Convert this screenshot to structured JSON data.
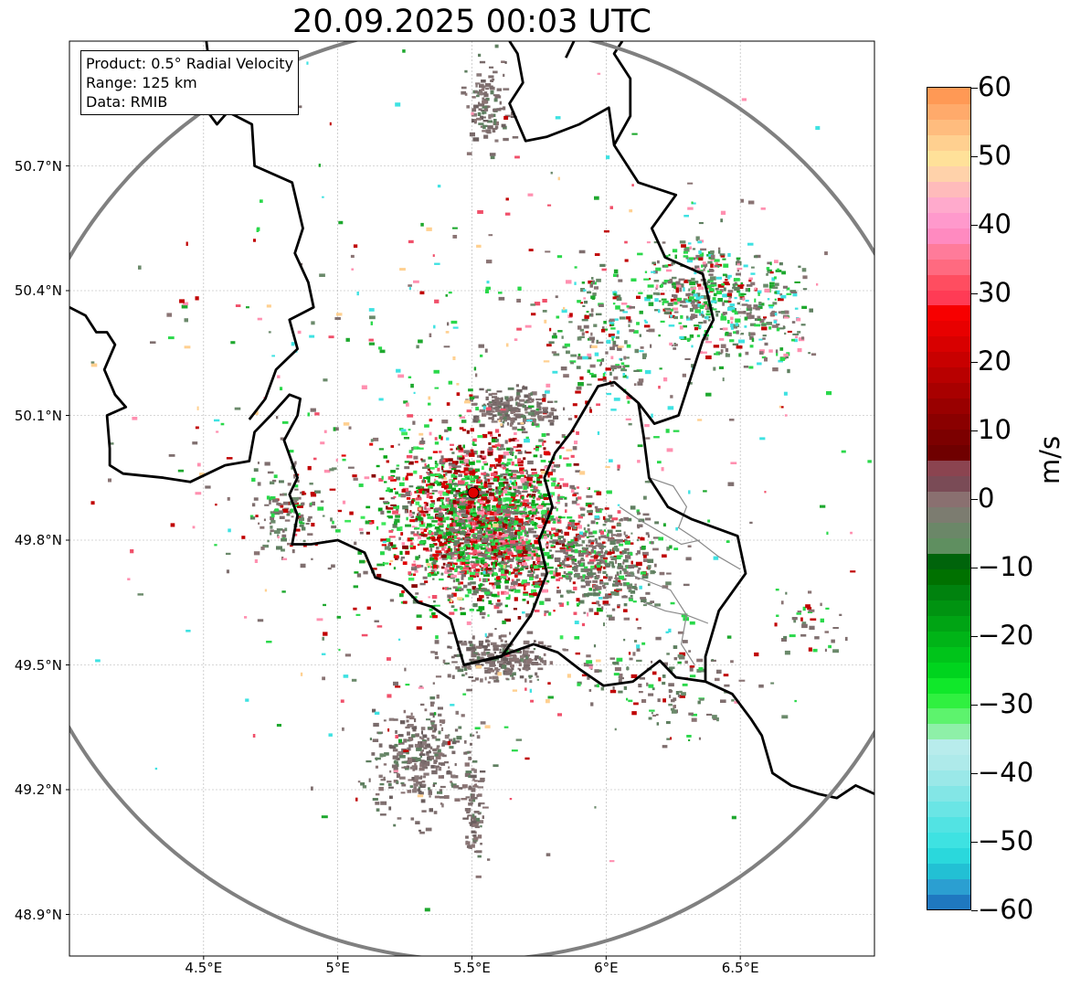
{
  "title": "20.09.2025 00:03 UTC",
  "info_box": {
    "product": "Product: 0.5° Radial Velocity",
    "range": "Range: 125 km",
    "data": "Data: RMIB"
  },
  "map": {
    "lon_range": [
      4.0,
      7.0
    ],
    "lat_range": [
      48.8,
      51.0
    ],
    "lon_ticks": [
      "4.5°E",
      "5°E",
      "5.5°E",
      "6°E",
      "6.5°E"
    ],
    "lat_ticks": [
      "50.7°N",
      "50.4°N",
      "50.1°N",
      "49.8°N",
      "49.5°N",
      "49.2°N",
      "48.9°N"
    ],
    "radar_site": {
      "lon": 5.505,
      "lat": 49.914
    },
    "range_km": 125,
    "grid": true,
    "borders": [
      [
        [
          4.51,
          51.0
        ],
        [
          4.52,
          50.95
        ],
        [
          4.48,
          50.86
        ],
        [
          4.55,
          50.8
        ],
        [
          4.59,
          50.83
        ],
        [
          4.68,
          50.8
        ],
        [
          4.69,
          50.7
        ],
        [
          4.83,
          50.66
        ],
        [
          4.87,
          50.55
        ],
        [
          4.84,
          50.49
        ],
        [
          4.89,
          50.42
        ],
        [
          4.91,
          50.36
        ],
        [
          4.82,
          50.33
        ],
        [
          4.85,
          50.26
        ],
        [
          4.77,
          50.21
        ],
        [
          4.73,
          50.14
        ],
        [
          4.67,
          50.09
        ]
      ],
      [
        [
          4.0,
          50.36
        ],
        [
          4.06,
          50.34
        ],
        [
          4.1,
          50.3
        ],
        [
          4.14,
          50.3
        ],
        [
          4.17,
          50.27
        ],
        [
          4.13,
          50.21
        ],
        [
          4.17,
          50.15
        ],
        [
          4.21,
          50.12
        ],
        [
          4.14,
          50.1
        ],
        [
          4.15,
          50.02
        ],
        [
          4.15,
          49.98
        ],
        [
          4.2,
          49.96
        ],
        [
          4.35,
          49.95
        ],
        [
          4.45,
          49.94
        ],
        [
          4.58,
          49.98
        ],
        [
          4.67,
          49.99
        ],
        [
          4.69,
          50.06
        ],
        [
          4.75,
          50.1
        ],
        [
          4.82,
          50.15
        ],
        [
          4.86,
          50.14
        ],
        [
          4.85,
          50.1
        ],
        [
          4.8,
          50.04
        ],
        [
          4.85,
          49.95
        ],
        [
          4.82,
          49.91
        ],
        [
          4.85,
          49.86
        ],
        [
          4.83,
          49.79
        ],
        [
          4.9,
          49.79
        ],
        [
          5.0,
          49.8
        ],
        [
          5.1,
          49.77
        ],
        [
          5.14,
          49.71
        ],
        [
          5.24,
          49.69
        ],
        [
          5.3,
          49.65
        ],
        [
          5.35,
          49.64
        ],
        [
          5.42,
          49.61
        ],
        [
          5.47,
          49.5
        ],
        [
          5.6,
          49.52
        ],
        [
          5.73,
          49.55
        ],
        [
          5.82,
          49.53
        ],
        [
          5.9,
          49.49
        ],
        [
          5.99,
          49.45
        ],
        [
          6.1,
          49.46
        ],
        [
          6.2,
          49.51
        ],
        [
          6.26,
          49.47
        ],
        [
          6.37,
          49.46
        ],
        [
          6.47,
          49.43
        ],
        [
          6.54,
          49.37
        ],
        [
          6.58,
          49.33
        ],
        [
          6.62,
          49.24
        ],
        [
          6.69,
          49.21
        ],
        [
          6.79,
          49.19
        ],
        [
          6.86,
          49.18
        ],
        [
          6.93,
          49.21
        ],
        [
          7.0,
          49.19
        ]
      ],
      [
        [
          5.47,
          49.5
        ],
        [
          5.61,
          49.52
        ],
        [
          5.72,
          49.62
        ],
        [
          5.78,
          49.72
        ],
        [
          5.75,
          49.8
        ],
        [
          5.8,
          49.88
        ],
        [
          5.77,
          49.95
        ],
        [
          5.81,
          50.01
        ],
        [
          5.87,
          50.06
        ],
        [
          5.97,
          50.17
        ],
        [
          6.03,
          50.18
        ],
        [
          6.12,
          50.13
        ],
        [
          6.14,
          50.05
        ],
        [
          6.16,
          49.95
        ],
        [
          6.23,
          49.88
        ],
        [
          6.32,
          49.85
        ],
        [
          6.49,
          49.81
        ],
        [
          6.52,
          49.72
        ],
        [
          6.42,
          49.63
        ],
        [
          6.37,
          49.52
        ],
        [
          6.37,
          49.46
        ]
      ],
      [
        [
          6.12,
          50.13
        ],
        [
          6.18,
          50.08
        ],
        [
          6.27,
          50.1
        ],
        [
          6.36,
          50.28
        ],
        [
          6.4,
          50.33
        ],
        [
          6.36,
          50.44
        ],
        [
          6.22,
          50.48
        ],
        [
          6.17,
          50.55
        ],
        [
          6.26,
          50.63
        ],
        [
          6.12,
          50.66
        ],
        [
          6.03,
          50.75
        ],
        [
          6.01,
          50.84
        ],
        [
          5.9,
          50.8
        ],
        [
          5.78,
          50.77
        ],
        [
          5.7,
          50.76
        ],
        [
          5.64,
          50.85
        ],
        [
          5.69,
          50.9
        ],
        [
          5.67,
          50.97
        ],
        [
          5.64,
          51.0
        ]
      ],
      [
        [
          6.03,
          50.75
        ],
        [
          6.09,
          50.82
        ],
        [
          6.09,
          50.91
        ],
        [
          6.03,
          50.97
        ],
        [
          6.06,
          51.0
        ]
      ],
      [
        [
          5.88,
          51.0
        ],
        [
          5.85,
          50.96
        ]
      ]
    ],
    "minor_borders": [
      [
        [
          6.16,
          49.95
        ],
        [
          6.25,
          49.93
        ],
        [
          6.3,
          49.88
        ],
        [
          6.27,
          49.83
        ],
        [
          6.34,
          49.8
        ],
        [
          6.42,
          49.76
        ],
        [
          6.5,
          49.73
        ]
      ],
      [
        [
          6.05,
          49.88
        ],
        [
          6.12,
          49.85
        ],
        [
          6.2,
          49.82
        ],
        [
          6.28,
          49.79
        ],
        [
          6.35,
          49.8
        ]
      ],
      [
        [
          6.08,
          49.72
        ],
        [
          6.16,
          49.7
        ],
        [
          6.24,
          49.68
        ],
        [
          6.3,
          49.62
        ],
        [
          6.28,
          49.55
        ],
        [
          6.33,
          49.5
        ]
      ],
      [
        [
          6.14,
          49.65
        ],
        [
          6.22,
          49.63
        ],
        [
          6.3,
          49.62
        ],
        [
          6.38,
          49.6
        ]
      ]
    ],
    "echo_clusters": [
      {
        "lon": 5.5,
        "lat": 49.86,
        "sx": 0.35,
        "sy": 0.2,
        "n": 1500,
        "mix": "core"
      },
      {
        "lon": 5.62,
        "lat": 49.8,
        "sx": 0.28,
        "sy": 0.15,
        "n": 700,
        "mix": "core"
      },
      {
        "lon": 5.6,
        "lat": 49.52,
        "sx": 0.18,
        "sy": 0.05,
        "n": 260,
        "mix": "gray"
      },
      {
        "lon": 6.0,
        "lat": 49.75,
        "sx": 0.2,
        "sy": 0.12,
        "n": 380,
        "mix": "grayish"
      },
      {
        "lon": 5.65,
        "lat": 50.12,
        "sx": 0.15,
        "sy": 0.05,
        "n": 200,
        "mix": "gray"
      },
      {
        "lon": 5.3,
        "lat": 49.28,
        "sx": 0.2,
        "sy": 0.14,
        "n": 300,
        "mix": "gray"
      },
      {
        "lon": 5.5,
        "lat": 49.15,
        "sx": 0.04,
        "sy": 0.12,
        "n": 90,
        "mix": "gray"
      },
      {
        "lon": 6.35,
        "lat": 50.4,
        "sx": 0.2,
        "sy": 0.15,
        "n": 380,
        "mix": "mixed"
      },
      {
        "lon": 6.0,
        "lat": 50.3,
        "sx": 0.18,
        "sy": 0.15,
        "n": 180,
        "mix": "mixed"
      },
      {
        "lon": 5.55,
        "lat": 50.85,
        "sx": 0.08,
        "sy": 0.12,
        "n": 110,
        "mix": "gray"
      },
      {
        "lon": 4.8,
        "lat": 49.88,
        "sx": 0.12,
        "sy": 0.1,
        "n": 120,
        "mix": "grayish"
      },
      {
        "lon": 6.2,
        "lat": 49.45,
        "sx": 0.3,
        "sy": 0.12,
        "n": 140,
        "mix": "grayish"
      },
      {
        "lon": 6.6,
        "lat": 50.35,
        "sx": 0.15,
        "sy": 0.12,
        "n": 160,
        "mix": "mixed"
      },
      {
        "lon": 6.75,
        "lat": 49.6,
        "sx": 0.15,
        "sy": 0.08,
        "n": 40,
        "mix": "grayish"
      },
      {
        "lon": 5.5,
        "lat": 50.0,
        "sx": 1.2,
        "sy": 0.7,
        "n": 650,
        "mix": "sparse"
      }
    ]
  },
  "colorbar": {
    "label": "m/s",
    "vmin": -60,
    "vmax": 60,
    "ticks": [
      "60",
      "50",
      "40",
      "30",
      "20",
      "10",
      "0",
      "−10",
      "−20",
      "−30",
      "−40",
      "−50",
      "−60"
    ],
    "segments": [
      "#1f78c0",
      "#2b9fd1",
      "#22c0d4",
      "#2ad8dc",
      "#3ee2e2",
      "#52e3e3",
      "#6ae5e5",
      "#83e6e6",
      "#9ae8e8",
      "#aeeaea",
      "#b8ecec",
      "#8ef0a8",
      "#5df36d",
      "#30f040",
      "#10e82a",
      "#00d41e",
      "#00c41a",
      "#00b417",
      "#00a414",
      "#009311",
      "#00820e",
      "#007100",
      "#00640b",
      "#5f8f60",
      "#6b8768",
      "#7c7c70",
      "#8a7070",
      "#7a4b56",
      "#8b4450",
      "#6f0000",
      "#7c0000",
      "#8a0000",
      "#990000",
      "#a80000",
      "#b80000",
      "#c80000",
      "#d80000",
      "#e80000",
      "#f70000",
      "#ff3b55",
      "#ff4d60",
      "#ff6a80",
      "#ff7b9a",
      "#ff8ac0",
      "#ff99cc",
      "#ffaacc",
      "#ffbbbb",
      "#ffd2aa",
      "#ffe199",
      "#ffd090",
      "#ffbc7e",
      "#ffaa6b",
      "#ff9955"
    ]
  }
}
